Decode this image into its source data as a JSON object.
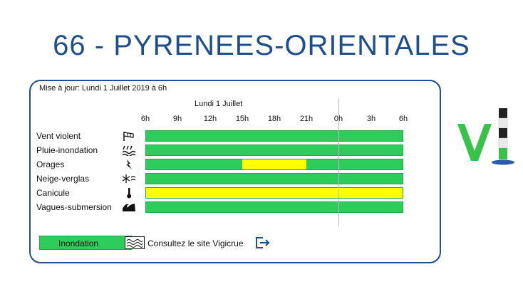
{
  "header": {
    "title": "66 - PYRENEES-ORIENTALES"
  },
  "panel": {
    "update_text": "Mise à jour: Lundi 1 Juillet 2019 à 6h",
    "day_label": "Lundi 1 Juillet",
    "hours": [
      "6h",
      "9h",
      "12h",
      "15h",
      "18h",
      "21h",
      "0h",
      "3h",
      "6h"
    ],
    "rows": [
      {
        "label": "Vent violent",
        "icon": "wind-sock-icon",
        "segments": [
          {
            "from_hour_offset": 0,
            "to_hour_offset": 24,
            "level": "green"
          }
        ]
      },
      {
        "label": "Pluie-inondation",
        "icon": "rain-flood-icon",
        "segments": [
          {
            "from_hour_offset": 0,
            "to_hour_offset": 24,
            "level": "green"
          }
        ]
      },
      {
        "label": "Orages",
        "icon": "lightning-icon",
        "segments": [
          {
            "from_hour_offset": 0,
            "to_hour_offset": 9,
            "level": "green"
          },
          {
            "from_hour_offset": 9,
            "to_hour_offset": 15,
            "level": "yellow"
          },
          {
            "from_hour_offset": 15,
            "to_hour_offset": 24,
            "level": "green"
          }
        ]
      },
      {
        "label": "Neige-verglas",
        "icon": "snowflake-icon",
        "segments": [
          {
            "from_hour_offset": 0,
            "to_hour_offset": 24,
            "level": "green"
          }
        ]
      },
      {
        "label": "Canicule",
        "icon": "thermometer-icon",
        "segments": [
          {
            "from_hour_offset": 0,
            "to_hour_offset": 24,
            "level": "yellow"
          }
        ]
      },
      {
        "label": "Vagues-submersion",
        "icon": "wave-icon",
        "segments": [
          {
            "from_hour_offset": 0,
            "to_hour_offset": 24,
            "level": "green"
          }
        ]
      }
    ],
    "legend": {
      "label": "Inondation",
      "icon": "flood-waves-icon",
      "link_text": "Consultez le site Vigicrue",
      "link_icon": "external-link-icon"
    }
  },
  "colors": {
    "green": "#2ecc5a",
    "yellow": "#ffff00",
    "title": "#1f4e8c"
  },
  "logo": {
    "icon": "vigilance-logo-icon"
  }
}
